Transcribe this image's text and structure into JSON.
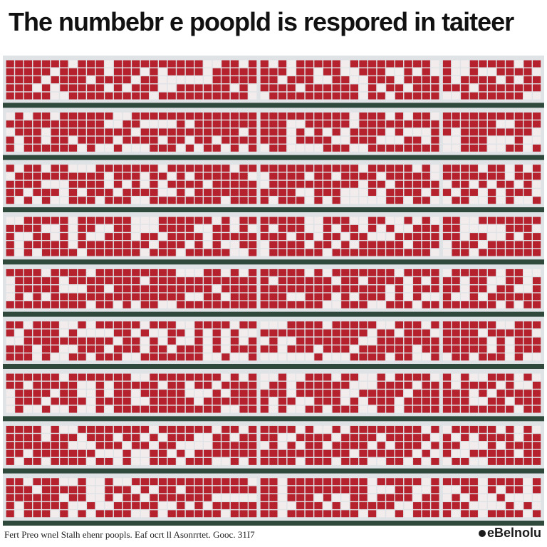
{
  "title": "The numbebr e poopld is respored in taiteer",
  "footer": {
    "source_note": "Fert Preo wnel Stalh ehenr poopls. Eaf ocrt ll Asonrrtet. Gooc. 31I7",
    "brand": "eBelnolu"
  },
  "colors": {
    "filled": "#b5222e",
    "empty": "#f2ecec",
    "row_separator": "#2f4a3c",
    "background": "#dfe3e6"
  },
  "chart_data": {
    "type": "heatmap",
    "subtype": "waffle",
    "title": "The numbebr e poopld is respored in taiteer",
    "rows": 9,
    "panels_per_row": 3,
    "grid_cols_per_panel": [
      28,
      20,
      11
    ],
    "grid_rows_per_row": 5,
    "fill_share": [
      0.72,
      0.7,
      0.74,
      0.71,
      0.73,
      0.69,
      0.72,
      0.7,
      0.71
    ]
  }
}
